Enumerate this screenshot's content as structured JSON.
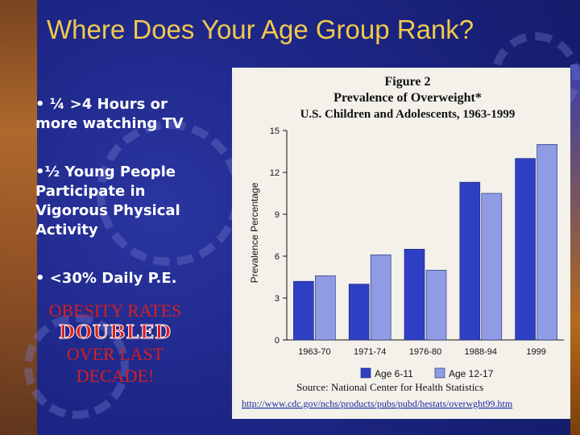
{
  "slide": {
    "title": "Where Does Your Age Group Rank?",
    "bullets": [
      "• ¼ >4 Hours or more watching TV",
      "•½ Young People Participate in Vigorous Physical Activity",
      "• <30% Daily P.E."
    ],
    "callout": {
      "line1": "OBESITY RATES",
      "line2": "DOUBLED",
      "line3": "OVER LAST",
      "line4": "DECADE!"
    }
  },
  "colors": {
    "title": "#f2c94c",
    "callout": "#d81e1e",
    "series_dark": "#2f3fc4",
    "series_light": "#8f9be3"
  },
  "chart_data": {
    "type": "bar",
    "title": "Figure 2",
    "subtitle": "Prevalence of Overweight*",
    "subtitle2": "U.S. Children and Adolescents, 1963-1999",
    "ylabel": "Prevalence Percentage",
    "xlabel": "",
    "ylim": [
      0,
      15
    ],
    "yticks": [
      0,
      3,
      6,
      9,
      12,
      15
    ],
    "categories": [
      "1963-70",
      "1971-74",
      "1976-80",
      "1988-94",
      "1999"
    ],
    "series": [
      {
        "name": "Age 6-11",
        "values": [
          4.2,
          4.0,
          6.5,
          11.3,
          13.0
        ]
      },
      {
        "name": "Age 12-17",
        "values": [
          4.6,
          6.1,
          5.0,
          10.5,
          14.0
        ]
      }
    ],
    "legend_position": "bottom",
    "source": "Source:  National Center for Health Statistics",
    "url": "http://www.cdc.gov/nchs/products/pubs/pubd/hestats/overwght99.htm",
    "grid": false
  }
}
